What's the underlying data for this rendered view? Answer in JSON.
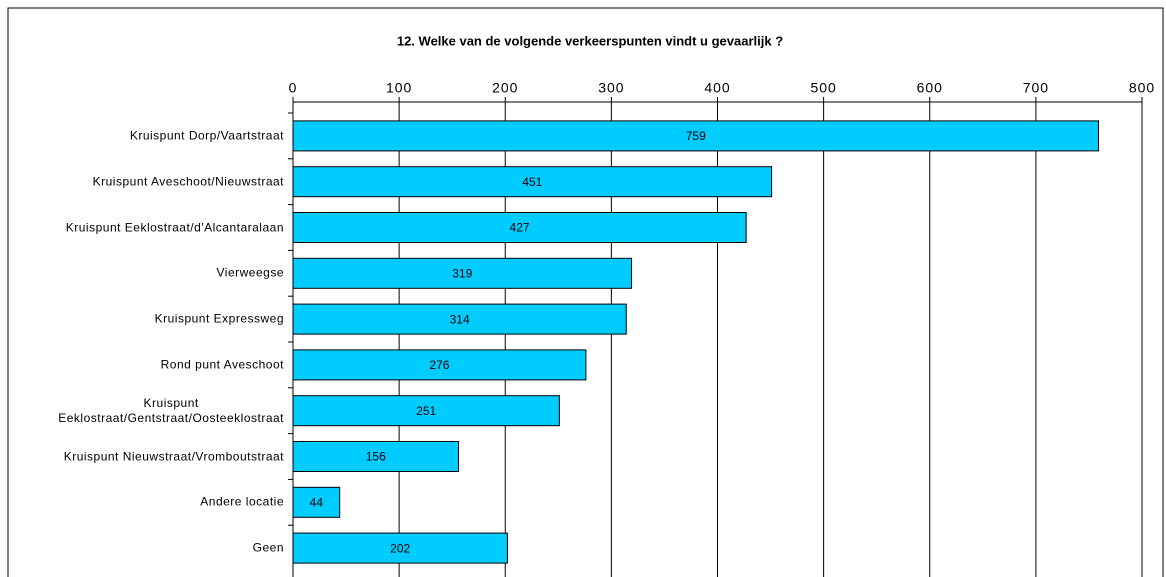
{
  "chart_data": {
    "type": "bar",
    "orientation": "horizontal",
    "title": "12.  Welke van de volgende verkeerspunten vindt u gevaarlijk ?",
    "categories": [
      "Kruispunt Dorp/Vaartstraat",
      "Kruispunt Aveschoot/Nieuwstraat",
      "Kruispunt Eeklostraat/d'Alcantaralaan",
      "Vierweegse",
      "Kruispunt Expressweg",
      "Rond punt Aveschoot",
      "Kruispunt\nEeklostraat/Gentstraat/Oosteeklostraat",
      "Kruispunt Nieuwstraat/Vromboutstraat",
      "Andere locatie",
      "Geen"
    ],
    "values": [
      759,
      451,
      427,
      319,
      314,
      276,
      251,
      156,
      44,
      202
    ],
    "color": "#00ccff",
    "xlim": [
      0,
      800
    ],
    "xticks": [
      0,
      100,
      200,
      300,
      400,
      500,
      600,
      700,
      800
    ],
    "grid": true
  }
}
